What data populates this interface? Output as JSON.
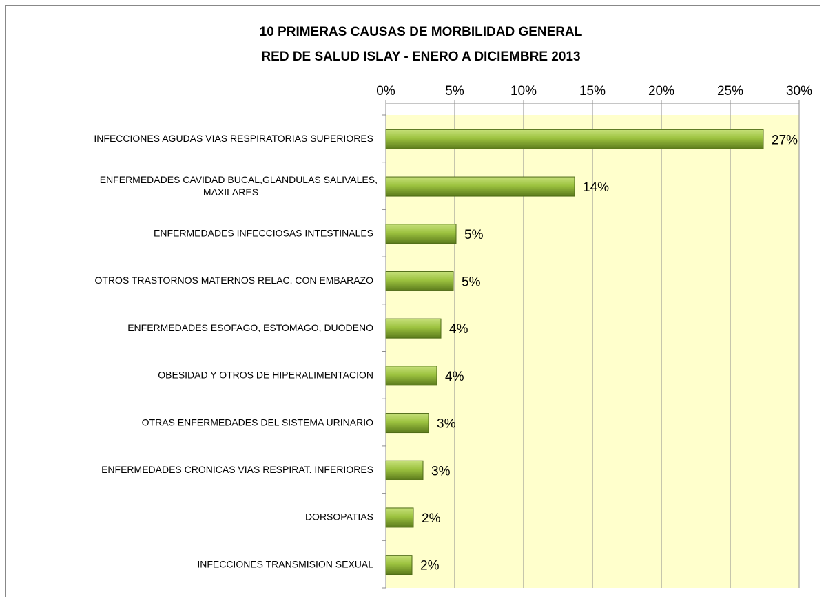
{
  "chart_data": {
    "type": "bar",
    "orientation": "horizontal",
    "title": [
      "10 PRIMERAS CAUSAS DE MORBILIDAD GENERAL",
      "RED DE SALUD ISLAY - ENERO A DICIEMBRE 2013"
    ],
    "categories": [
      "INFECCIONES AGUDAS  VIAS RESPIRATORIAS SUPERIORES",
      "ENFERMEDADES CAVIDAD BUCAL,GLANDULAS SALIVALES,\nMAXILARES",
      "ENFERMEDADES INFECCIOSAS INTESTINALES",
      "OTROS TRASTORNOS MATERNOS RELAC. CON  EMBARAZO",
      "ENFERMEDADES  ESOFAGO, ESTOMAGO, DUODENO",
      "OBESIDAD Y OTROS DE HIPERALIMENTACION",
      "OTRAS ENFERMEDADES DEL SISTEMA URINARIO",
      "ENFERMEDADES CRONICAS VIAS RESPIRAT. INFERIORES",
      "DORSOPATIAS",
      "INFECCIONES TRANSMISION  SEXUAL"
    ],
    "values": [
      27.4,
      13.7,
      5.1,
      4.9,
      4.0,
      3.7,
      3.1,
      2.7,
      2.0,
      1.9
    ],
    "value_labels": [
      "27%",
      "14%",
      "5%",
      "5%",
      "4%",
      "4%",
      "3%",
      "3%",
      "2%",
      "2%"
    ],
    "color": "#8db33a",
    "xlim": [
      0,
      30
    ],
    "xticks": [
      {
        "value": 0,
        "label": "0%"
      },
      {
        "value": 5,
        "label": "5%"
      },
      {
        "value": 10,
        "label": "10%"
      },
      {
        "value": 15,
        "label": "15%"
      },
      {
        "value": 20,
        "label": "20%"
      },
      {
        "value": 25,
        "label": "25%"
      },
      {
        "value": 30,
        "label": "30%"
      }
    ],
    "grid": true
  }
}
